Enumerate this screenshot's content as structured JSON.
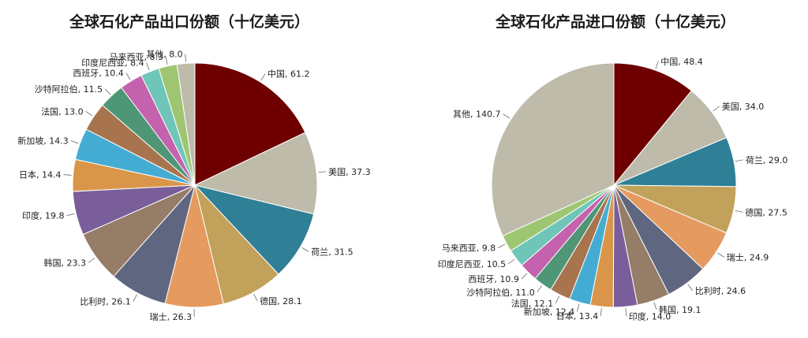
{
  "chart_data": [
    {
      "type": "pie",
      "title": "全球石化产品出口份额（十亿美元）",
      "unit": "十亿美元",
      "slices": [
        {
          "label": "中国",
          "value": 61.2,
          "value_text": "61.2",
          "color": "#6e0000"
        },
        {
          "label": "美国",
          "value": 37.3,
          "value_text": "37.3",
          "color": "#bfbbaa"
        },
        {
          "label": "荷兰",
          "value": 31.5,
          "value_text": "31.5",
          "color": "#2f7f96"
        },
        {
          "label": "德国",
          "value": 28.1,
          "value_text": "28.1",
          "color": "#c2a25a"
        },
        {
          "label": "瑞士",
          "value": 26.3,
          "value_text": "26.3",
          "color": "#e59a60"
        },
        {
          "label": "比利时",
          "value": 26.1,
          "value_text": "26.1",
          "color": "#5f6680"
        },
        {
          "label": "韩国",
          "value": 23.3,
          "value_text": "23.3",
          "color": "#967d68"
        },
        {
          "label": "印度",
          "value": 19.8,
          "value_text": "19.8",
          "color": "#7a5e9a"
        },
        {
          "label": "日本",
          "value": 14.4,
          "value_text": "14.4",
          "color": "#d9964a"
        },
        {
          "label": "新加坡",
          "value": 14.3,
          "value_text": "14.3",
          "color": "#44acd2"
        },
        {
          "label": "法国",
          "value": 13.0,
          "value_text": "13.0",
          "color": "#a8744e"
        },
        {
          "label": "沙特阿拉伯",
          "value": 11.5,
          "value_text": "11.5",
          "color": "#4e9675"
        },
        {
          "label": "西班牙",
          "value": 10.4,
          "value_text": "10.4",
          "color": "#c462ad"
        },
        {
          "label": "印度尼西亚",
          "value": 8.4,
          "value_text": "8.4",
          "color": "#6fc6b8"
        },
        {
          "label": "马来西亚",
          "value": 8.3,
          "value_text": "8.3",
          "color": "#9ec672"
        },
        {
          "label": "其他",
          "value": 8.0,
          "value_text": "8.0",
          "color": "#bfbbaa"
        }
      ]
    },
    {
      "type": "pie",
      "title": "全球石化产品进口份额（十亿美元）",
      "unit": "十亿美元",
      "slices": [
        {
          "label": "中国",
          "value": 48.4,
          "value_text": "48.4",
          "color": "#6e0000"
        },
        {
          "label": "美国",
          "value": 34.0,
          "value_text": "34.0",
          "color": "#bfbbaa"
        },
        {
          "label": "荷兰",
          "value": 29.0,
          "value_text": "29.0",
          "color": "#2f7f96"
        },
        {
          "label": "德国",
          "value": 27.5,
          "value_text": "27.5",
          "color": "#c2a25a"
        },
        {
          "label": "瑞士",
          "value": 24.9,
          "value_text": "24.9",
          "color": "#e59a60"
        },
        {
          "label": "比利时",
          "value": 24.6,
          "value_text": "24.6",
          "color": "#5f6680"
        },
        {
          "label": "韩国",
          "value": 19.1,
          "value_text": "19.1",
          "color": "#967d68"
        },
        {
          "label": "印度",
          "value": 14.0,
          "value_text": "14.0",
          "color": "#7a5e9a"
        },
        {
          "label": "日本",
          "value": 13.4,
          "value_text": "13.4",
          "color": "#d9964a"
        },
        {
          "label": "新加坡",
          "value": 12.4,
          "value_text": "12.4",
          "color": "#44acd2"
        },
        {
          "label": "法国",
          "value": 12.1,
          "value_text": "12.1",
          "color": "#a8744e"
        },
        {
          "label": "沙特阿拉伯",
          "value": 11.0,
          "value_text": "11.0",
          "color": "#4e9675"
        },
        {
          "label": "西班牙",
          "value": 10.9,
          "value_text": "10.9",
          "color": "#c462ad"
        },
        {
          "label": "印度尼西亚",
          "value": 10.5,
          "value_text": "10.5",
          "color": "#6fc6b8"
        },
        {
          "label": "马来西亚",
          "value": 9.8,
          "value_text": "9.8",
          "color": "#9ec672"
        },
        {
          "label": "其他",
          "value": 140.7,
          "value_text": "140.7",
          "color": "#bfbbaa"
        }
      ]
    }
  ]
}
